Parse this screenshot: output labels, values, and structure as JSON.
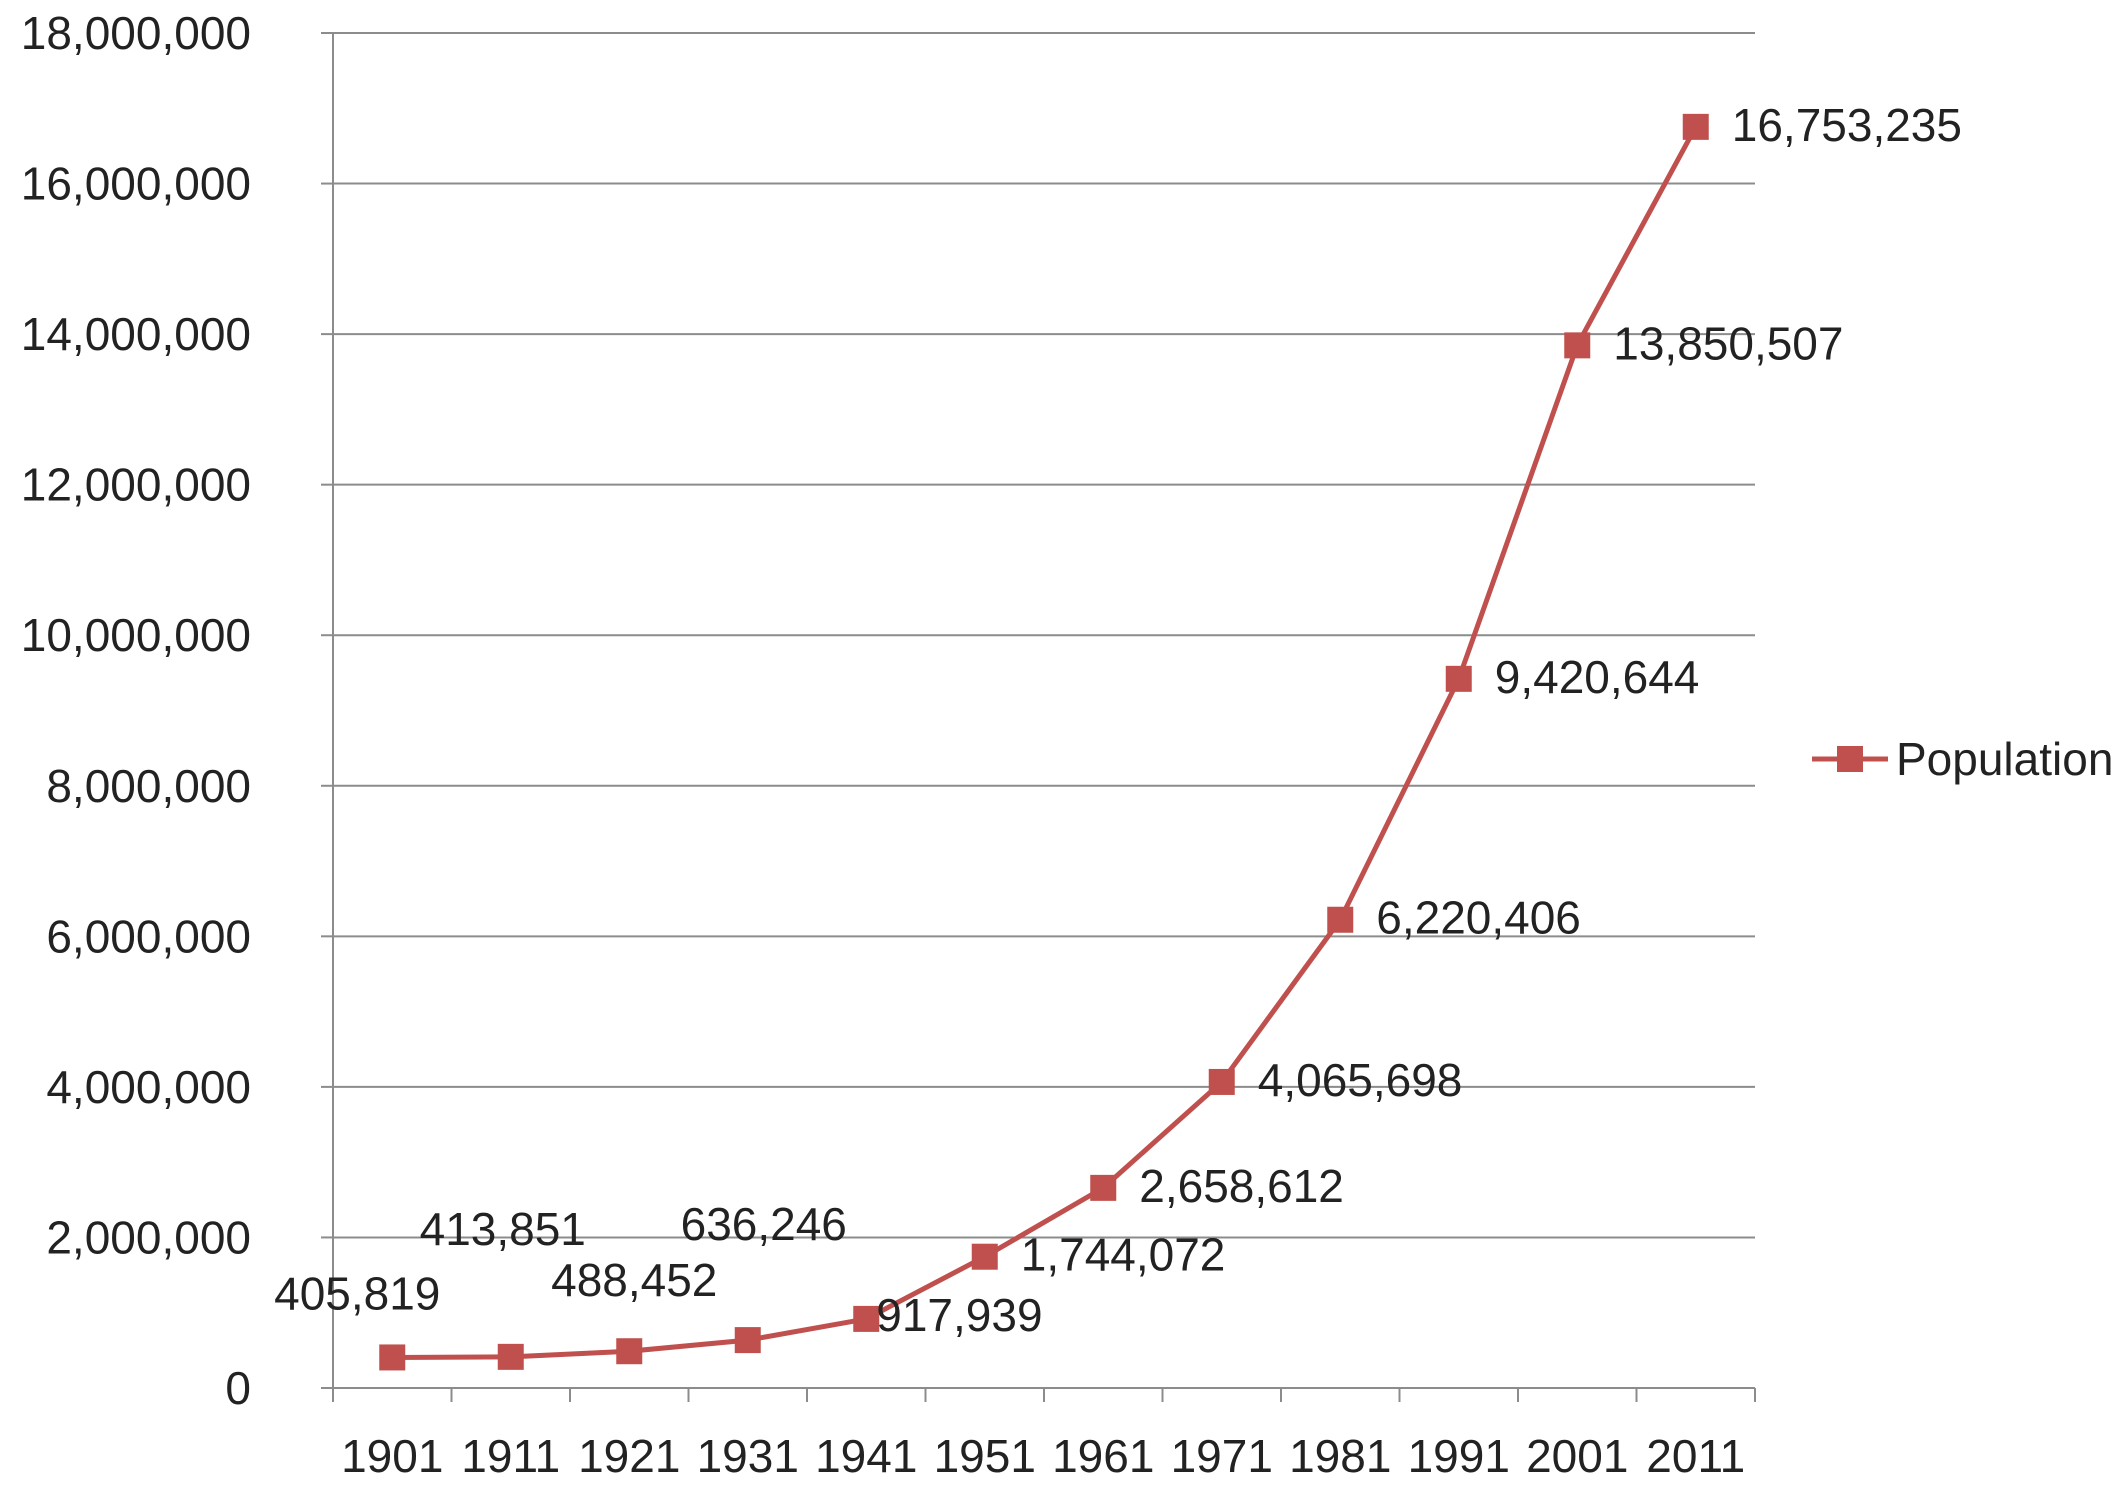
{
  "chart_data": {
    "type": "line",
    "title": "",
    "xlabel": "",
    "ylabel": "",
    "categories": [
      "1901",
      "1911",
      "1921",
      "1931",
      "1941",
      "1951",
      "1961",
      "1971",
      "1981",
      "1991",
      "2001",
      "2011"
    ],
    "ylim": [
      0,
      18000000
    ],
    "y_ticks": [
      0,
      2000000,
      4000000,
      6000000,
      8000000,
      10000000,
      12000000,
      14000000,
      16000000,
      18000000
    ],
    "y_tick_labels": [
      "0",
      "2,000,000",
      "4,000,000",
      "6,000,000",
      "8,000,000",
      "10,000,000",
      "12,000,000",
      "14,000,000",
      "16,000,000",
      "18,000,000"
    ],
    "grid": true,
    "legend_position": "right",
    "series": [
      {
        "name": "Population",
        "color": "#c0504d",
        "marker": "square",
        "values": [
          405819,
          413851,
          488452,
          636246,
          917939,
          1744072,
          2658612,
          4065698,
          6220406,
          9420644,
          13850507,
          16753235
        ],
        "data_labels": [
          "405,819",
          "413,851",
          "488,452",
          "636,246",
          "917,939",
          "1,744,072",
          "2,658,612",
          "4,065,698",
          "6,220,406",
          "9,420,644",
          "13,850,507",
          "16,753,235"
        ]
      }
    ]
  }
}
